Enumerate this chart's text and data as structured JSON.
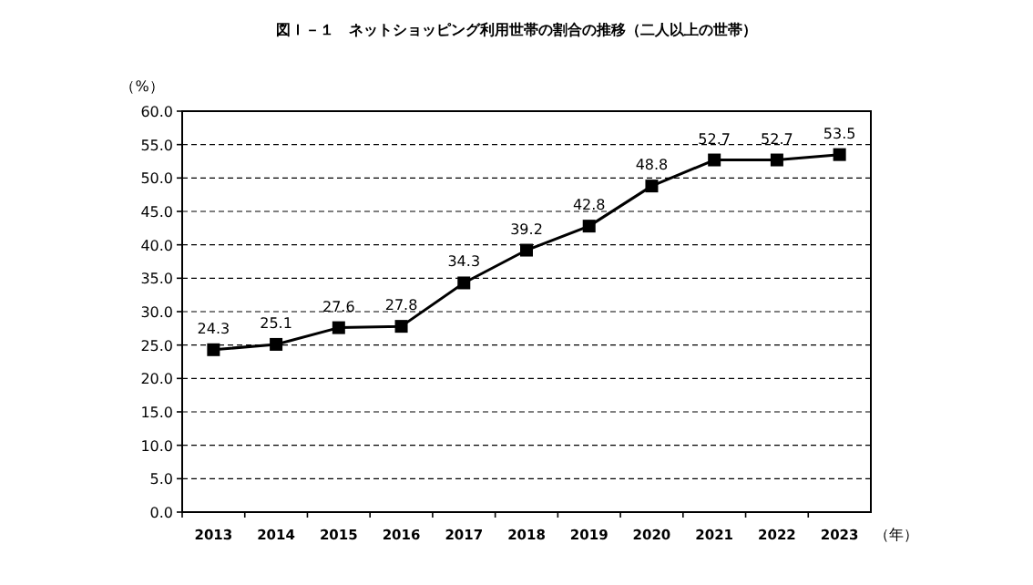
{
  "chart_data": {
    "type": "line",
    "title": "図Ｉ－１　ネットショッピング利用世帯の割合の推移（二人以上の世帯）",
    "ylabel": "（%）",
    "xlabel": "（年）",
    "categories": [
      "2013",
      "2014",
      "2015",
      "2016",
      "2017",
      "2018",
      "2019",
      "2020",
      "2021",
      "2022",
      "2023"
    ],
    "values": [
      24.3,
      25.1,
      27.6,
      27.8,
      34.3,
      39.2,
      42.8,
      48.8,
      52.7,
      52.7,
      53.5
    ],
    "color": "#000000",
    "marker": "square",
    "line_style": "solid",
    "data_labels": true,
    "grid": "y",
    "ylim": [
      0,
      60
    ],
    "yticks": [
      {
        "value": 0,
        "label": "0.0"
      },
      {
        "value": 5,
        "label": "5.0"
      },
      {
        "value": 10,
        "label": "10.0"
      },
      {
        "value": 15,
        "label": "15.0"
      },
      {
        "value": 20,
        "label": "20.0"
      },
      {
        "value": 25,
        "label": "25.0"
      },
      {
        "value": 30,
        "label": "30.0"
      },
      {
        "value": 35,
        "label": "35.0"
      },
      {
        "value": 40,
        "label": "40.0"
      },
      {
        "value": 45,
        "label": "45.0"
      },
      {
        "value": 50,
        "label": "50.0"
      },
      {
        "value": 55,
        "label": "55.0"
      },
      {
        "value": 60,
        "label": "60.0"
      }
    ]
  }
}
